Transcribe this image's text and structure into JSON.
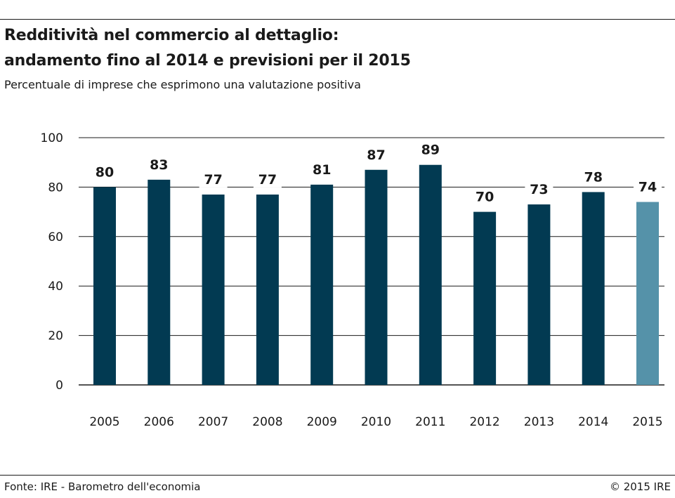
{
  "header": {
    "title_line1": "Redditività nel commercio al dettaglio:",
    "title_line2": "andamento fino al 2014 e previsioni per il 2015",
    "subtitle": "Percentuale di imprese che esprimono una valutazione positiva"
  },
  "footer": {
    "source": "Fonte: IRE - Barometro dell'economia",
    "copyright": "© 2015 IRE"
  },
  "colors": {
    "actual": "#023a52",
    "forecast": "#5592a9",
    "gridline": "#1a1a1a",
    "text": "#1a1a1a"
  },
  "chart_data": {
    "type": "bar",
    "categories": [
      "2005",
      "2006",
      "2007",
      "2008",
      "2009",
      "2010",
      "2011",
      "2012",
      "2013",
      "2014",
      "2015"
    ],
    "values": [
      80,
      83,
      77,
      77,
      81,
      87,
      89,
      70,
      73,
      78,
      74
    ],
    "data_labels": [
      "80",
      "83",
      "77",
      "77",
      "81",
      "87",
      "89",
      "70",
      "73",
      "78",
      "74"
    ],
    "forecast_categories": [
      "2015"
    ],
    "ylim": [
      0,
      100
    ],
    "yticks": [
      0,
      20,
      40,
      60,
      80,
      100
    ],
    "ytick_labels": [
      "0",
      "20",
      "40",
      "60",
      "80",
      "100"
    ],
    "grid": true,
    "title": "Redditività nel commercio al dettaglio: andamento fino al 2014 e previsioni per il 2015",
    "xlabel": "",
    "ylabel": ""
  }
}
